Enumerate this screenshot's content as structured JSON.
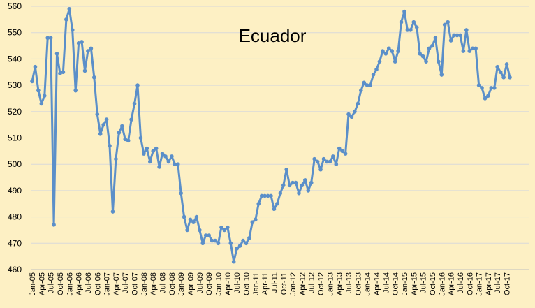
{
  "chart_data": {
    "type": "line",
    "title": "Ecuador",
    "xlabel": "",
    "ylabel": "",
    "ylim": [
      460,
      560
    ],
    "y_ticks": [
      460,
      470,
      480,
      490,
      500,
      510,
      520,
      530,
      540,
      550,
      560
    ],
    "grid": "horizontal",
    "line_color": "#5b8fc9",
    "background_color": "#fdf0c4",
    "gridline_color": "#d9d9d9",
    "x_tick_labels": [
      "Jan-05",
      "Apr-05",
      "Jul-05",
      "Oct-05",
      "Jan-06",
      "Apr-06",
      "Jul-06",
      "Oct-06",
      "Jan-07",
      "Apr-07",
      "Jul-07",
      "Oct-07",
      "Jan-08",
      "Apr-08",
      "Jul-08",
      "Oct-08",
      "Jan-09",
      "Apr-09",
      "Jul-09",
      "Oct-09",
      "Jan-10",
      "Apr-10",
      "Jul-10",
      "Oct-10",
      "Jan-11",
      "Apr-11",
      "Jul-11",
      "Oct-11",
      "Jan-12",
      "Apr-12",
      "Jul-12",
      "Oct-12",
      "Jan-13",
      "Apr-13",
      "Jul-13",
      "Oct-13",
      "Jan-14",
      "Apr-14",
      "Jul-14",
      "Oct-14",
      "Jan-15",
      "Apr-15",
      "Jul-15",
      "Oct-15",
      "Jan-16",
      "Apr-16",
      "Jul-16",
      "Oct-16",
      "Jan-17",
      "Apr-17",
      "Jul-17",
      "Oct-17"
    ],
    "x_start": "Jan-05",
    "series": [
      {
        "values": [
          531.5,
          537,
          528,
          523,
          526,
          548,
          548,
          477,
          542,
          534.5,
          535,
          555,
          559,
          551,
          528,
          546,
          546.5,
          535.5,
          543,
          544,
          533,
          519,
          511.5,
          515,
          517,
          507,
          482,
          502,
          512,
          514.5,
          509.5,
          509,
          517,
          523,
          530,
          510,
          504,
          506,
          501,
          505,
          506,
          499,
          504,
          503,
          501,
          503,
          500,
          500,
          489,
          480,
          475,
          479,
          478,
          480,
          475,
          470,
          473,
          473,
          471,
          471,
          470,
          476,
          475,
          476,
          470,
          463,
          468,
          469,
          471,
          470,
          472,
          478,
          479,
          485,
          488,
          488,
          488,
          488,
          483,
          485,
          489,
          492,
          498,
          492,
          493,
          493,
          489,
          492,
          494,
          490,
          493,
          502,
          501,
          498,
          502,
          501,
          501,
          503,
          500,
          506,
          505,
          504,
          519,
          518,
          520,
          523,
          528,
          531,
          530,
          530,
          534,
          536,
          539,
          543,
          542,
          544,
          543,
          539,
          543,
          554,
          558,
          551,
          551,
          554,
          552,
          542,
          541,
          539,
          544,
          545,
          548,
          539,
          534,
          553,
          554,
          547,
          549,
          549,
          549,
          543,
          551,
          543,
          544,
          544,
          530,
          529,
          525,
          526,
          529,
          529,
          537,
          535,
          533,
          538,
          533
        ]
      }
    ]
  }
}
